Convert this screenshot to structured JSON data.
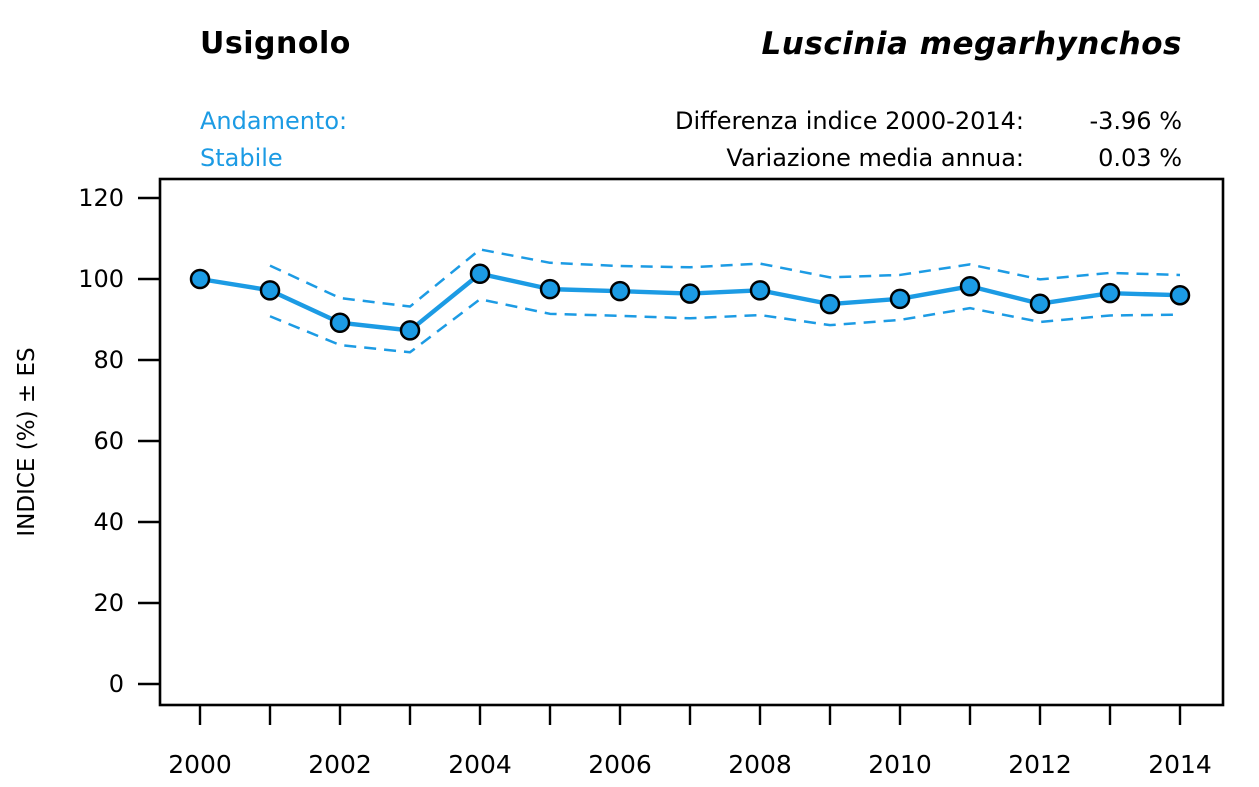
{
  "header": {
    "title": "Usignolo",
    "species": "Luscinia megarhynchos",
    "trend_label": "Andamento:",
    "trend_value": "Stabile",
    "stats": [
      {
        "label": "Differenza indice 2000-2014:",
        "value": "-3.96 %"
      },
      {
        "label": "Variazione media annua:",
        "value": "0.03 %"
      }
    ]
  },
  "colors": {
    "accent": "#1C9BE4",
    "axis": "#000000",
    "marker_outline": "#000000"
  },
  "chart_data": {
    "type": "line",
    "title": "",
    "xlabel": "",
    "ylabel": "INDICE (%) ± ES",
    "x": [
      2000,
      2001,
      2002,
      2003,
      2004,
      2005,
      2006,
      2007,
      2008,
      2009,
      2010,
      2011,
      2012,
      2013,
      2014
    ],
    "series": [
      {
        "name": "Indice",
        "style": "solid-markers",
        "values": [
          100.0,
          97.2,
          89.2,
          87.3,
          101.3,
          97.5,
          97.0,
          96.4,
          97.2,
          93.8,
          95.1,
          98.2,
          93.9,
          96.5,
          96.0
        ]
      },
      {
        "name": "Indice + ES",
        "style": "dashed",
        "values": [
          null,
          103.3,
          95.3,
          93.2,
          107.3,
          104.0,
          103.2,
          102.9,
          103.8,
          100.4,
          101.0,
          103.6,
          99.9,
          101.5,
          101.0
        ]
      },
      {
        "name": "Indice - ES",
        "style": "dashed",
        "values": [
          null,
          90.8,
          83.7,
          81.9,
          95.0,
          91.4,
          90.9,
          90.3,
          91.1,
          88.6,
          89.9,
          92.8,
          89.4,
          91.0,
          91.2
        ]
      }
    ],
    "ylim": [
      -5,
      125
    ],
    "yticks": [
      0,
      20,
      40,
      60,
      80,
      100,
      120
    ],
    "xtick_years": [
      2000,
      2001,
      2002,
      2003,
      2004,
      2005,
      2006,
      2007,
      2008,
      2009,
      2010,
      2011,
      2012,
      2013,
      2014
    ],
    "xtick_labels": [
      "2000",
      "2002",
      "2004",
      "2006",
      "2008",
      "2010",
      "2012",
      "2014"
    ],
    "grid": false,
    "legend": "none"
  }
}
